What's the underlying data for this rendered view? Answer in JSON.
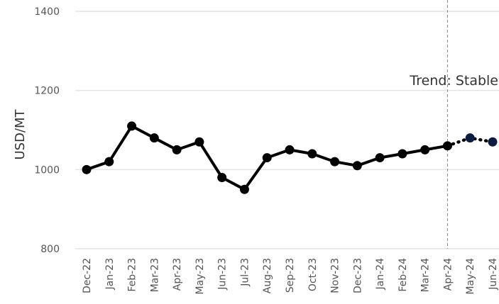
{
  "chart_data": {
    "type": "line",
    "ylabel": "USD/MT",
    "ylim": [
      800,
      1400
    ],
    "yticks": [
      "800",
      "1000",
      "1200",
      "1400"
    ],
    "grid": "horizontal",
    "categories": [
      "Dec-22",
      "Jan-23",
      "Feb-23",
      "Mar-23",
      "Apr-23",
      "May-23",
      "Jun-23",
      "Jul-23",
      "Aug-23",
      "Sep-23",
      "Oct-23",
      "Nov-23",
      "Dec-23",
      "Jan-24",
      "Feb-24",
      "Mar-24",
      "Apr-24",
      "May-24",
      "Jun-24"
    ],
    "series": [
      {
        "style": "actual",
        "color": "#000000",
        "x": [
          "Dec-22",
          "Jan-23",
          "Feb-23",
          "Mar-23",
          "Apr-23",
          "May-23",
          "Jun-23",
          "Jul-23",
          "Aug-23",
          "Sep-23",
          "Oct-23",
          "Nov-23",
          "Dec-23",
          "Jan-24",
          "Feb-24",
          "Mar-24",
          "Apr-24"
        ],
        "values": [
          1000,
          1020,
          1110,
          1080,
          1050,
          1070,
          980,
          950,
          1030,
          1050,
          1040,
          1020,
          1010,
          1030,
          1040,
          1050,
          1060
        ]
      },
      {
        "style": "forecast",
        "color": "#000000",
        "marker_color": "#0d1b3e",
        "x": [
          "Apr-24",
          "May-24",
          "Jun-24"
        ],
        "values": [
          1060,
          1080,
          1070
        ]
      }
    ],
    "annotation": {
      "text": "Trend: Stable"
    },
    "divider_at": "Apr-24"
  }
}
